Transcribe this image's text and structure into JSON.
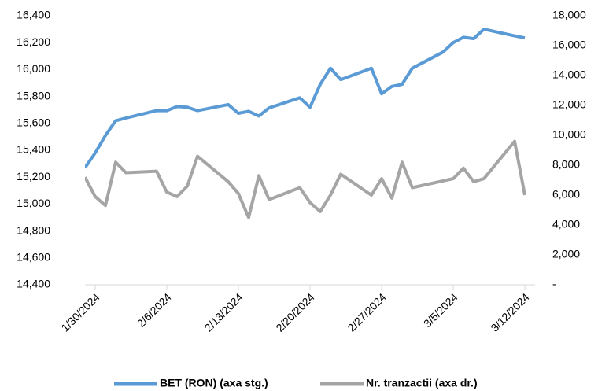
{
  "chart_data": {
    "type": "line",
    "x": [
      "1/29/2024",
      "1/30/2024",
      "1/31/2024",
      "2/1/2024",
      "2/2/2024",
      "2/5/2024",
      "2/6/2024",
      "2/7/2024",
      "2/8/2024",
      "2/9/2024",
      "2/12/2024",
      "2/13/2024",
      "2/14/2024",
      "2/15/2024",
      "2/16/2024",
      "2/19/2024",
      "2/20/2024",
      "2/21/2024",
      "2/22/2024",
      "2/23/2024",
      "2/26/2024",
      "2/27/2024",
      "2/28/2024",
      "2/29/2024",
      "3/1/2024",
      "3/4/2024",
      "3/5/2024",
      "3/6/2024",
      "3/7/2024",
      "3/8/2024",
      "3/11/2024",
      "3/12/2024"
    ],
    "series": [
      {
        "name": "BET (RON) (axa stg.)",
        "color": "#5b9bd5",
        "axis": "y",
        "values": [
          15270,
          15380,
          15510,
          15620,
          15640,
          15695,
          15695,
          15725,
          15720,
          15695,
          15740,
          15675,
          15690,
          15655,
          15715,
          15790,
          15720,
          15890,
          16010,
          15925,
          16010,
          15820,
          15875,
          15890,
          16010,
          16130,
          16200,
          16240,
          16230,
          16300,
          16250,
          16235
        ]
      },
      {
        "name": "Nr. tranzactii (axa dr.)",
        "color": "#a5a5a5",
        "axis": "y2",
        "values": [
          7200,
          5900,
          5300,
          8200,
          7500,
          7600,
          6200,
          5900,
          6600,
          8600,
          6900,
          6100,
          4500,
          7300,
          5700,
          6500,
          5500,
          4900,
          6000,
          7400,
          6000,
          7100,
          5800,
          8200,
          6500,
          6950,
          7100,
          7800,
          6900,
          7100,
          9600,
          6000
        ]
      }
    ],
    "xlim": [
      "1/29/2024",
      "3/13/2024"
    ],
    "xticks": [
      "1/30/2024",
      "2/6/2024",
      "2/13/2024",
      "2/20/2024",
      "2/27/2024",
      "3/5/2024",
      "3/12/2024"
    ],
    "ylim": [
      14400,
      16400
    ],
    "yticks": [
      {
        "value": 14400,
        "label": "14,400"
      },
      {
        "value": 14600,
        "label": "14,600"
      },
      {
        "value": 14800,
        "label": "14,800"
      },
      {
        "value": 15000,
        "label": "15,000"
      },
      {
        "value": 15200,
        "label": "15,200"
      },
      {
        "value": 15400,
        "label": "15,400"
      },
      {
        "value": 15600,
        "label": "15,600"
      },
      {
        "value": 15800,
        "label": "15,800"
      },
      {
        "value": 16000,
        "label": "16,000"
      },
      {
        "value": 16200,
        "label": "16,200"
      },
      {
        "value": 16400,
        "label": "16,400"
      }
    ],
    "y2lim": [
      0,
      18000
    ],
    "y2ticks": [
      {
        "value": 0,
        "label": "-"
      },
      {
        "value": 2000,
        "label": "2,000"
      },
      {
        "value": 4000,
        "label": "4,000"
      },
      {
        "value": 6000,
        "label": "6,000"
      },
      {
        "value": 8000,
        "label": "8,000"
      },
      {
        "value": 10000,
        "label": "10,000"
      },
      {
        "value": 12000,
        "label": "12,000"
      },
      {
        "value": 14000,
        "label": "14,000"
      },
      {
        "value": 16000,
        "label": "16,000"
      },
      {
        "value": 18000,
        "label": "18,000"
      }
    ],
    "grid": false,
    "legend": "bottom"
  }
}
